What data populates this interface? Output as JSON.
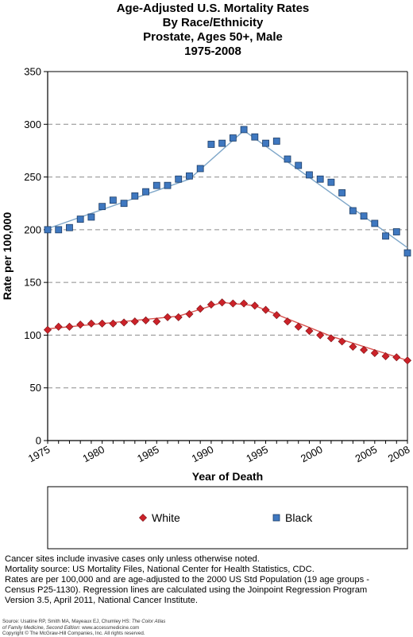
{
  "chart_data": {
    "type": "line",
    "title_lines": [
      "Age-Adjusted U.S. Mortality Rates",
      "By Race/Ethnicity",
      "Prostate, Ages 50+, Male",
      "1975-2008"
    ],
    "xlabel": "Year of Death",
    "ylabel": "Rate per 100,000",
    "xlim": [
      1975,
      2008
    ],
    "ylim": [
      0,
      350
    ],
    "x_ticks": [
      1975,
      1980,
      1985,
      1990,
      1995,
      2000,
      2005,
      2008
    ],
    "x_tick_labels": [
      "1975",
      "1980",
      "1985",
      "1990",
      "1995",
      "2000",
      "2005",
      "2008"
    ],
    "y_ticks": [
      0,
      50,
      100,
      150,
      200,
      250,
      300,
      350
    ],
    "y_tick_labels": [
      "0",
      "50",
      "100",
      "150",
      "200",
      "250",
      "300",
      "350"
    ],
    "grid": true,
    "legend_position": "bottom",
    "x": [
      1975,
      1976,
      1977,
      1978,
      1979,
      1980,
      1981,
      1982,
      1983,
      1984,
      1985,
      1986,
      1987,
      1988,
      1989,
      1990,
      1991,
      1992,
      1993,
      1994,
      1995,
      1996,
      1997,
      1998,
      1999,
      2000,
      2001,
      2002,
      2003,
      2004,
      2005,
      2006,
      2007,
      2008
    ],
    "series": [
      {
        "name": "White",
        "marker": "diamond",
        "color": "#cc2229",
        "line_color": "#d9534f",
        "values": [
          105,
          108,
          108,
          110,
          111,
          111,
          111,
          112,
          113,
          114,
          113,
          117,
          117,
          120,
          125,
          129,
          131,
          130,
          130,
          128,
          124,
          119,
          113,
          108,
          104,
          100,
          97,
          94,
          89,
          86,
          83,
          80,
          79,
          76
        ],
        "trend": [
          [
            1975,
            106
          ],
          [
            1987,
            118
          ],
          [
            1991,
            131
          ],
          [
            1994,
            128
          ],
          [
            2001,
            99
          ],
          [
            2008,
            76
          ]
        ]
      },
      {
        "name": "Black",
        "marker": "square",
        "color": "#3f78c0",
        "line_color": "#7fa7c9",
        "values": [
          200,
          200,
          202,
          210,
          212,
          222,
          228,
          225,
          232,
          236,
          242,
          242,
          248,
          251,
          258,
          281,
          282,
          287,
          295,
          288,
          282,
          284,
          267,
          261,
          252,
          248,
          245,
          235,
          218,
          213,
          206,
          194,
          198,
          178
        ],
        "trend": [
          [
            1975,
            201
          ],
          [
            1988,
            248
          ],
          [
            1993,
            294
          ],
          [
            2008,
            183
          ]
        ]
      }
    ],
    "notes": [
      "Cancer sites include invasive cases only unless otherwise noted.",
      "Mortality source: US Mortality Files, National Center for Health Statistics, CDC.",
      "Rates are per 100,000 and are age-adjusted to the 2000 US Std Population (19 age groups -",
      "Census P25-1130). Regression lines are calculated using the Joinpoint Regression Program",
      "Version 3.5, April 2011, National Cancer Institute."
    ]
  },
  "source": {
    "line1_prefix": "Source: Usatine RP, Smith MA, Mayeaux EJ, Chumley HS: ",
    "line1_italic": "The Color Atlas",
    "line2_italic": "of Family Medicine, Second Edition",
    "line2_suffix": ": www.accessmedicine.com",
    "line3": "Copyright © The McGraw-Hill Companies, Inc. All rights reserved."
  }
}
